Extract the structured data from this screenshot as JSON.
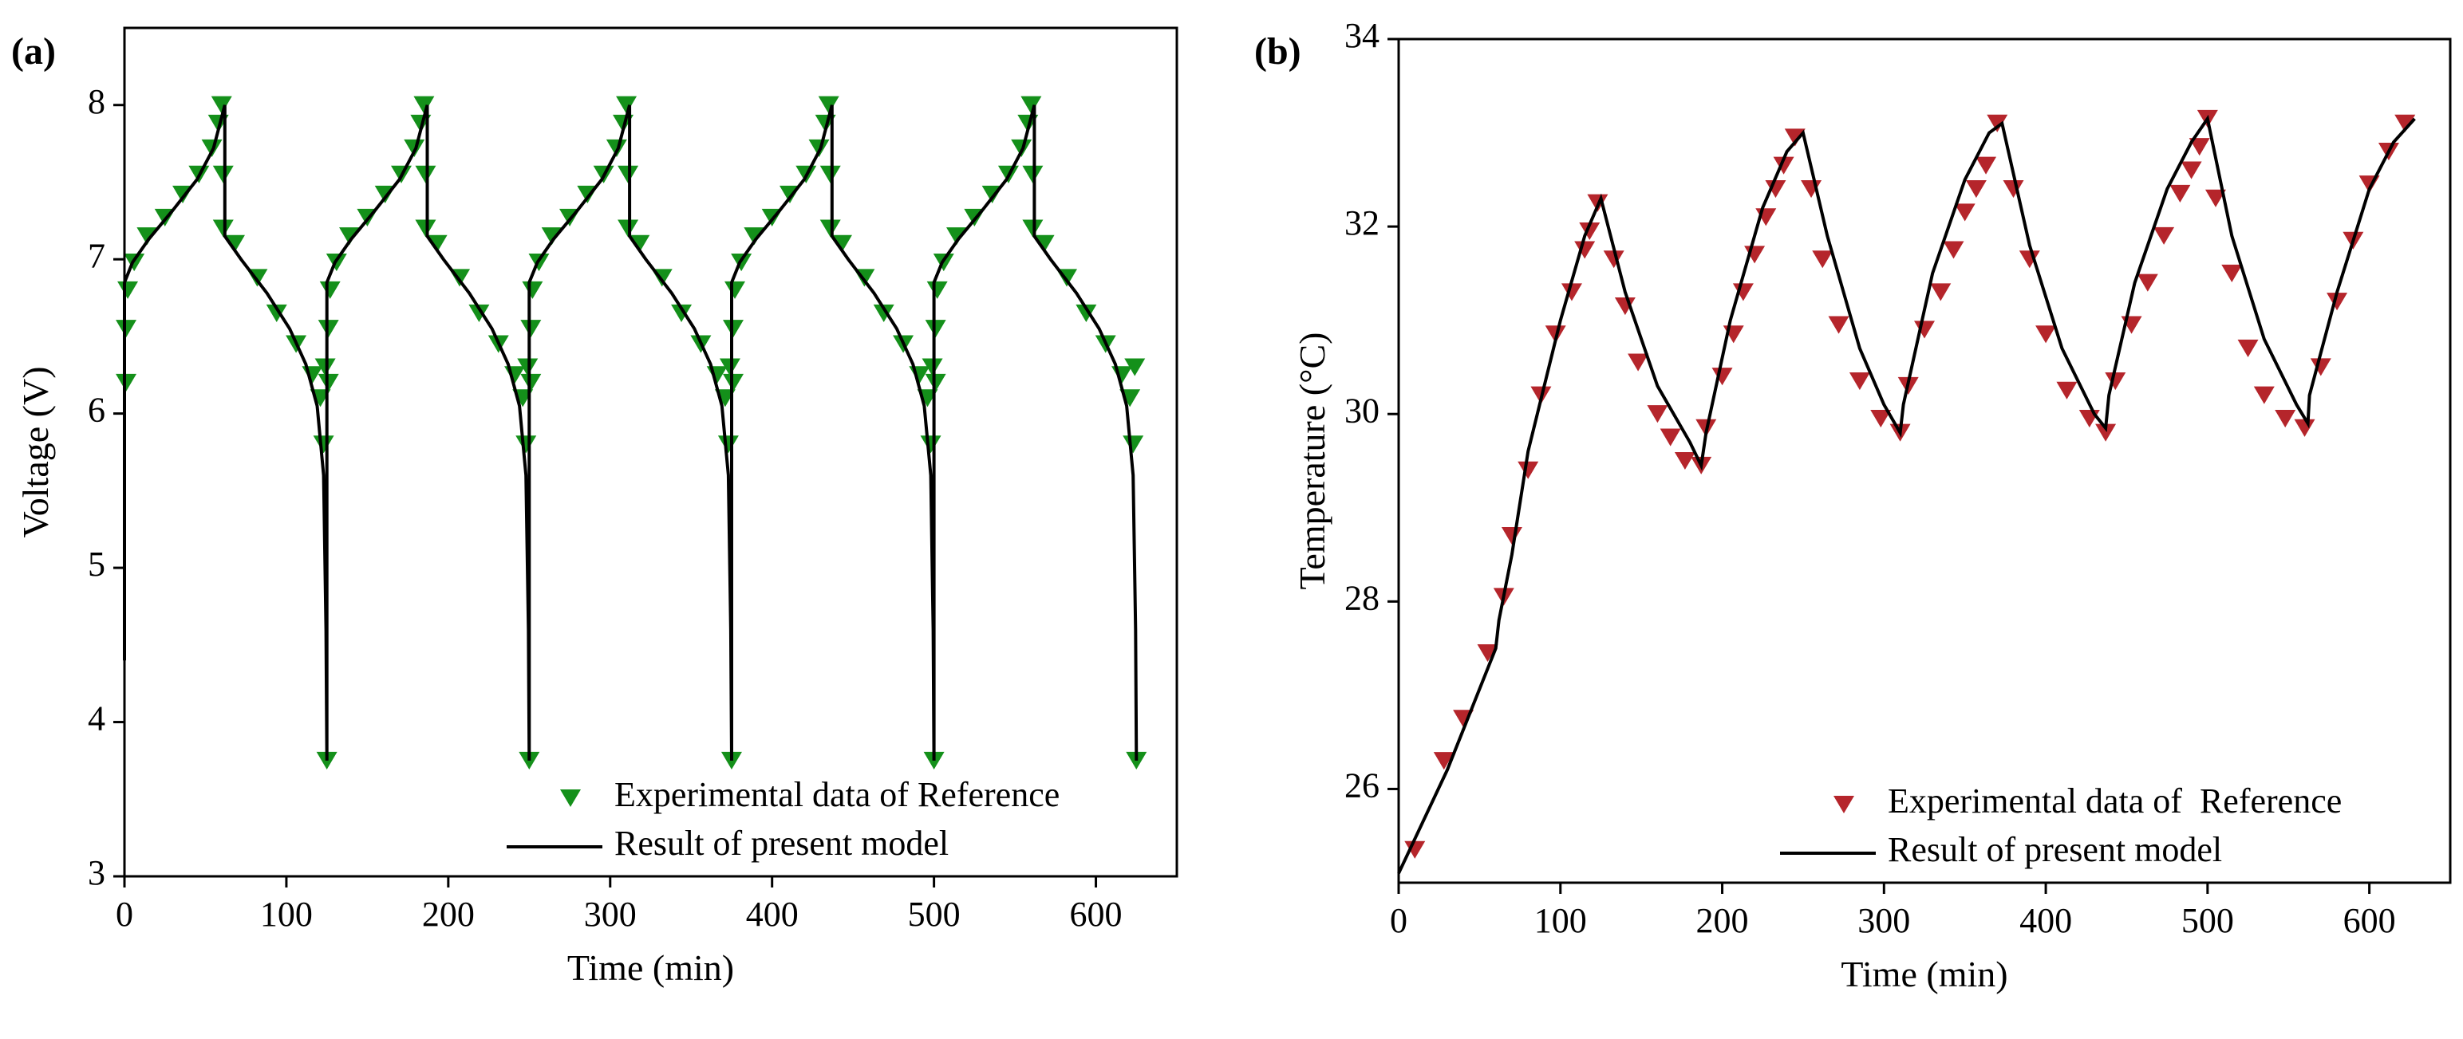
{
  "chart_data": [
    {
      "type": "line",
      "panel_label": "(a)",
      "xlabel": "Time (min)",
      "ylabel": "Voltage (V)",
      "xlim": [
        0,
        650
      ],
      "ylim": [
        3,
        8.5
      ],
      "xticks": [
        0,
        100,
        200,
        300,
        400,
        500,
        600
      ],
      "yticks": [
        3,
        4,
        5,
        6,
        7,
        8
      ],
      "legend": "lower right",
      "series": [
        {
          "name": "Experimental data of Reference",
          "type": "scatter",
          "marker": "triangle-down",
          "color": "#14901a",
          "x": [
            1,
            1,
            2,
            6,
            14,
            25,
            36,
            46,
            54,
            58,
            60,
            61,
            61,
            68,
            82,
            94,
            106,
            116,
            121,
            123,
            124,
            125,
            126,
            126,
            127,
            131,
            139,
            150,
            161,
            171,
            179,
            183,
            185,
            186,
            186,
            193,
            207,
            219,
            231,
            241,
            246,
            248,
            249,
            250,
            251,
            251,
            252,
            256,
            264,
            275,
            286,
            296,
            304,
            308,
            310,
            311,
            311,
            318,
            332,
            344,
            356,
            366,
            371,
            373,
            374,
            375,
            376,
            376,
            377,
            381,
            389,
            400,
            411,
            421,
            429,
            433,
            435,
            436,
            436,
            443,
            457,
            469,
            481,
            491,
            496,
            498,
            499,
            500,
            501,
            501,
            502,
            506,
            514,
            525,
            536,
            546,
            554,
            558,
            560,
            561,
            561,
            568,
            582,
            594,
            606,
            616,
            621,
            623,
            624,
            625
          ],
          "values": [
            6.2,
            6.55,
            6.8,
            6.98,
            7.15,
            7.27,
            7.42,
            7.55,
            7.72,
            7.88,
            8.0,
            7.55,
            7.2,
            7.1,
            6.88,
            6.65,
            6.45,
            6.25,
            6.1,
            5.8,
            6.3,
            3.75,
            6.2,
            6.55,
            6.8,
            6.98,
            7.15,
            7.27,
            7.42,
            7.55,
            7.72,
            7.88,
            8.0,
            7.55,
            7.2,
            7.1,
            6.88,
            6.65,
            6.45,
            6.25,
            6.1,
            5.8,
            6.3,
            3.75,
            6.2,
            6.55,
            6.8,
            6.98,
            7.15,
            7.27,
            7.42,
            7.55,
            7.72,
            7.88,
            8.0,
            7.55,
            7.2,
            7.1,
            6.88,
            6.65,
            6.45,
            6.25,
            6.1,
            5.8,
            6.3,
            3.75,
            6.2,
            6.55,
            6.8,
            6.98,
            7.15,
            7.27,
            7.42,
            7.55,
            7.72,
            7.88,
            8.0,
            7.55,
            7.2,
            7.1,
            6.88,
            6.65,
            6.45,
            6.25,
            6.1,
            5.8,
            6.3,
            3.75,
            6.2,
            6.55,
            6.8,
            6.98,
            7.15,
            7.27,
            7.42,
            7.55,
            7.72,
            7.88,
            8.0,
            7.55,
            7.2,
            7.1,
            6.88,
            6.65,
            6.45,
            6.25,
            6.1,
            5.8,
            6.3,
            3.75
          ]
        },
        {
          "name": "Result of present model",
          "type": "line",
          "color": "#000000",
          "x": [
            0,
            0,
            5,
            15,
            30,
            45,
            55,
            62,
            62,
            72,
            88,
            102,
            112,
            119,
            123,
            124.5,
            125,
            125,
            130,
            140,
            155,
            170,
            180,
            187,
            187,
            197,
            213,
            227,
            237,
            244,
            248,
            249.5,
            250,
            250,
            255,
            265,
            280,
            295,
            305,
            312,
            312,
            322,
            338,
            352,
            362,
            369,
            373,
            374.5,
            375,
            375,
            380,
            390,
            405,
            420,
            430,
            437,
            437,
            447,
            463,
            477,
            487,
            494,
            498,
            499.5,
            500,
            500,
            505,
            515,
            530,
            545,
            555,
            562,
            562,
            572,
            588,
            602,
            612,
            619,
            623,
            624.5,
            625
          ],
          "values": [
            4.4,
            6.85,
            6.98,
            7.13,
            7.32,
            7.52,
            7.72,
            8.0,
            7.15,
            7.0,
            6.78,
            6.55,
            6.32,
            6.05,
            5.6,
            4.6,
            3.75,
            6.85,
            6.98,
            7.13,
            7.32,
            7.52,
            7.72,
            8.0,
            7.15,
            7.0,
            6.78,
            6.55,
            6.32,
            6.05,
            5.6,
            4.6,
            3.75,
            6.85,
            6.98,
            7.13,
            7.32,
            7.52,
            7.72,
            8.0,
            7.15,
            7.0,
            6.78,
            6.55,
            6.32,
            6.05,
            5.6,
            4.6,
            3.75,
            6.85,
            6.98,
            7.13,
            7.32,
            7.52,
            7.72,
            8.0,
            7.15,
            7.0,
            6.78,
            6.55,
            6.32,
            6.05,
            5.6,
            4.6,
            3.75,
            6.85,
            6.98,
            7.13,
            7.32,
            7.52,
            7.72,
            8.0,
            7.15,
            7.0,
            6.78,
            6.55,
            6.32,
            6.05,
            5.6,
            4.6,
            3.75
          ]
        }
      ]
    },
    {
      "type": "line",
      "panel_label": "(b)",
      "xlabel": "Time (min)",
      "ylabel": "Temperature (°C)",
      "xlim": [
        0,
        650
      ],
      "ylim": [
        25,
        34
      ],
      "xticks": [
        0,
        100,
        200,
        300,
        400,
        500,
        600
      ],
      "yticks": [
        26,
        28,
        30,
        32,
        34
      ],
      "legend": "lower right",
      "series": [
        {
          "name": "Experimental data of  Reference",
          "type": "scatter",
          "marker": "triangle-down",
          "color": "#b5252b",
          "x": [
            10,
            28,
            40,
            55,
            65,
            70,
            80,
            88,
            97,
            107,
            115,
            118,
            123,
            133,
            140,
            148,
            160,
            168,
            177,
            187,
            190,
            200,
            207,
            213,
            220,
            227,
            233,
            238,
            245,
            255,
            262,
            272,
            285,
            298,
            310,
            315,
            325,
            335,
            343,
            350,
            357,
            363,
            370,
            380,
            390,
            400,
            413,
            427,
            437,
            443,
            453,
            463,
            473,
            483,
            490,
            495,
            500,
            505,
            515,
            525,
            535,
            548,
            560,
            570,
            580,
            590,
            600,
            612,
            622
          ],
          "values": [
            25.35,
            26.3,
            26.75,
            27.45,
            28.05,
            28.7,
            29.4,
            30.2,
            30.85,
            31.3,
            31.75,
            31.95,
            32.25,
            31.65,
            31.15,
            30.55,
            30.0,
            29.75,
            29.5,
            29.45,
            29.85,
            30.4,
            30.85,
            31.3,
            31.7,
            32.1,
            32.4,
            32.65,
            32.95,
            32.4,
            31.65,
            30.95,
            30.35,
            29.95,
            29.8,
            30.3,
            30.9,
            31.3,
            31.75,
            32.15,
            32.4,
            32.65,
            33.1,
            32.4,
            31.65,
            30.85,
            30.25,
            29.95,
            29.8,
            30.35,
            30.95,
            31.4,
            31.9,
            32.35,
            32.6,
            32.85,
            33.15,
            32.3,
            31.5,
            30.7,
            30.2,
            29.95,
            29.85,
            30.5,
            31.2,
            31.85,
            32.45,
            32.8,
            33.1
          ]
        },
        {
          "name": "Result of present model",
          "type": "line",
          "color": "#000000",
          "x": [
            0,
            30,
            60,
            62,
            70,
            80,
            100,
            115,
            125,
            140,
            160,
            180,
            187,
            190,
            205,
            225,
            240,
            250,
            265,
            285,
            300,
            310,
            312,
            330,
            350,
            365,
            373,
            390,
            410,
            430,
            437,
            439,
            455,
            475,
            490,
            500,
            515,
            535,
            555,
            562,
            563,
            580,
            600,
            615,
            628
          ],
          "values": [
            25.1,
            26.2,
            27.5,
            27.8,
            28.5,
            29.6,
            31.0,
            31.9,
            32.3,
            31.3,
            30.3,
            29.7,
            29.45,
            29.8,
            31.0,
            32.2,
            32.8,
            33.0,
            31.9,
            30.7,
            30.1,
            29.8,
            30.1,
            31.5,
            32.5,
            33.0,
            33.1,
            31.8,
            30.7,
            30.0,
            29.85,
            30.2,
            31.4,
            32.4,
            32.9,
            33.15,
            31.9,
            30.8,
            30.1,
            29.9,
            30.2,
            31.3,
            32.4,
            32.9,
            33.15
          ]
        }
      ]
    }
  ]
}
